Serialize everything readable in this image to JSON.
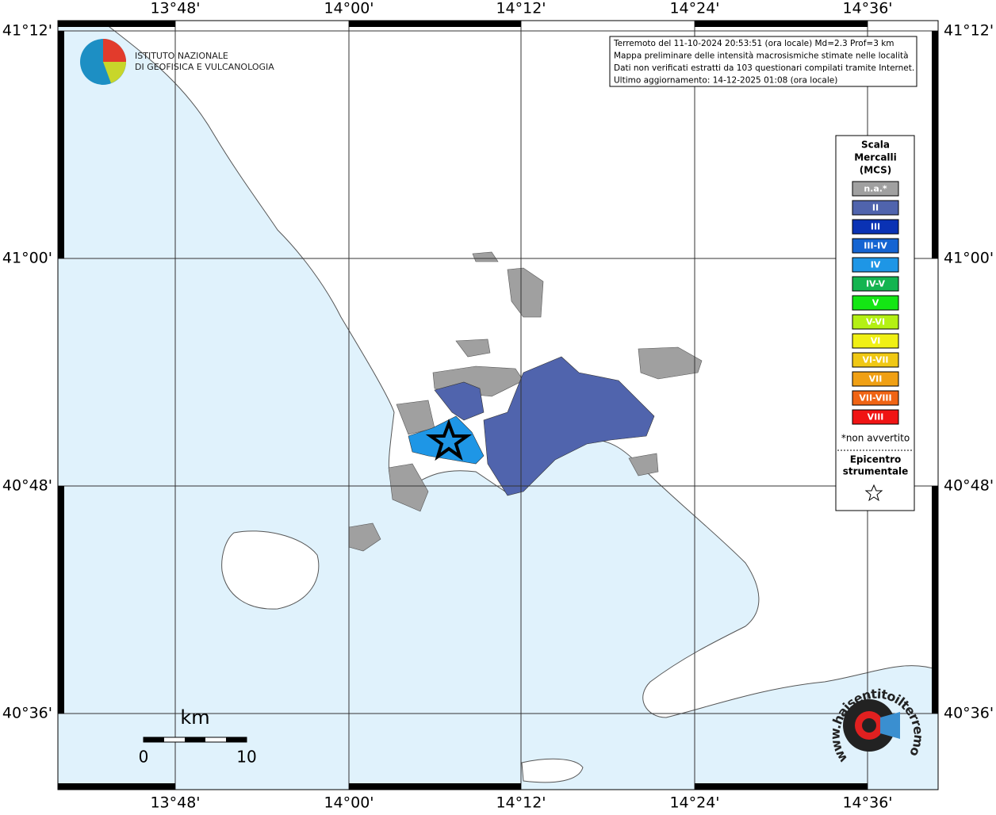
{
  "info_box": {
    "lines": [
      "Terremoto del 11-10-2024 20:53:51 (ora locale) Md=2.3 Prof=3 km",
      "Mappa preliminare delle intensità macrosismiche stimate nelle località",
      "Dati non verificati estratti da 103 questionari compilati tramite Internet.",
      "Ultimo aggiornamento: 14-12-2025 01:08 (ora locale)"
    ]
  },
  "logo": {
    "lines": [
      "ISTITUTO NAZIONALE",
      "DI GEOFISICA E VULCANOLOGIA"
    ]
  },
  "lon_labels": [
    "13°48'",
    "14°00'",
    "14°12'",
    "14°24'",
    "14°36'"
  ],
  "lat_labels": [
    "41°12'",
    "41°00'",
    "40°48'",
    "40°36'"
  ],
  "legend": {
    "title": [
      "Scala",
      "Mercalli",
      "(MCS)"
    ],
    "items": [
      {
        "label": "n.a.*",
        "color": "#a0a0a0"
      },
      {
        "label": "II",
        "color": "#5064ad"
      },
      {
        "label": "III",
        "color": "#0a32b4"
      },
      {
        "label": "III-IV",
        "color": "#1464d2"
      },
      {
        "label": "IV",
        "color": "#1e96e6"
      },
      {
        "label": "IV-V",
        "color": "#14b450"
      },
      {
        "label": "V",
        "color": "#14e614"
      },
      {
        "label": "V-VI",
        "color": "#b4f014"
      },
      {
        "label": "VI",
        "color": "#f0f014"
      },
      {
        "label": "VI-VII",
        "color": "#f0c814"
      },
      {
        "label": "VII",
        "color": "#f0a014"
      },
      {
        "label": "VII-VIII",
        "color": "#f06414"
      },
      {
        "label": "VIII",
        "color": "#f01414"
      }
    ],
    "note": "*non avvertito",
    "epicenter": [
      "Epicentro",
      "strumentale"
    ]
  },
  "scale_bar": {
    "unit": "km",
    "labels": [
      "0",
      "10"
    ]
  },
  "badge": "www.haisentitoilterremoto.it"
}
